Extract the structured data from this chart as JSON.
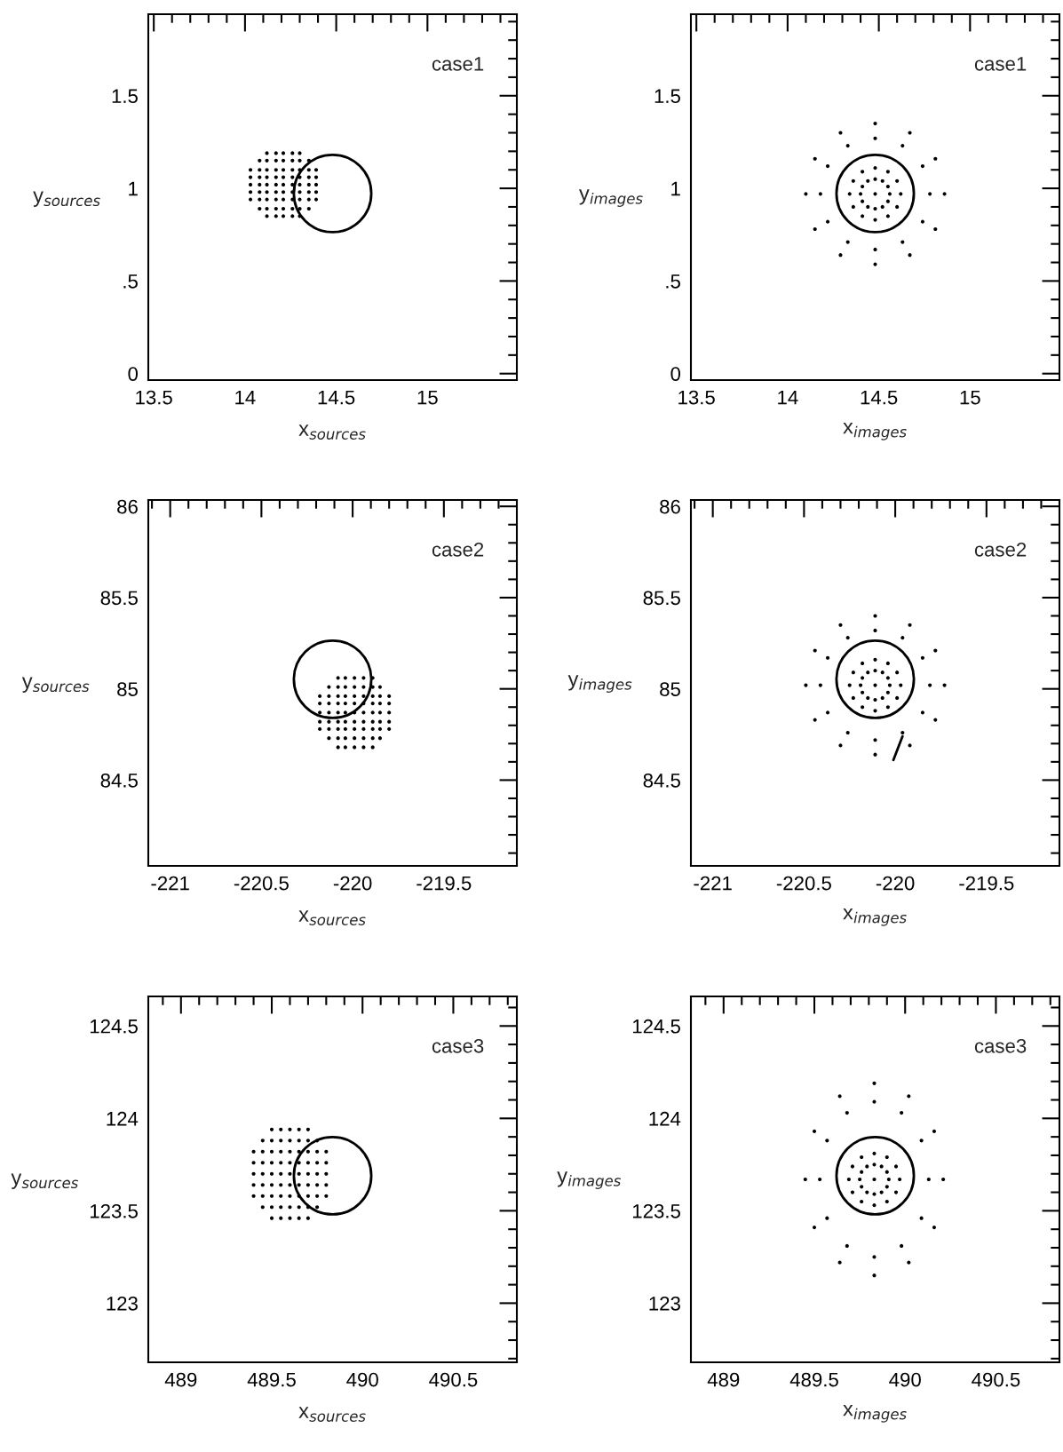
{
  "chart_data": [
    {
      "type": "scatter",
      "xlabel": "x$_{sources}$",
      "ylabel": "y$_{sources}$",
      "annotations": [
        "case1"
      ],
      "xlim": [
        13.47,
        15.49
      ],
      "ylim": [
        -0.035,
        1.94
      ],
      "xticks": [
        13.5,
        {
          "value": 13.6,
          "label": null
        },
        {
          "value": 13.7,
          "label": null
        },
        {
          "value": 13.8,
          "label": null
        },
        {
          "value": 13.9,
          "label": null
        },
        14,
        {
          "value": 14.1,
          "label": null
        },
        {
          "value": 14.2,
          "label": null
        },
        {
          "value": 14.3,
          "label": null
        },
        {
          "value": 14.4,
          "label": null
        },
        14.5,
        {
          "value": 14.6,
          "label": null
        },
        {
          "value": 14.7,
          "label": null
        },
        {
          "value": 14.8,
          "label": null
        },
        {
          "value": 14.9,
          "label": null
        },
        15,
        {
          "value": 15.1,
          "label": null
        },
        {
          "value": 15.2,
          "label": null
        },
        {
          "value": 15.3,
          "label": null
        },
        {
          "value": 15.4,
          "label": null
        }
      ],
      "yticks": [
        0,
        {
          "value": 0.1,
          "label": null
        },
        {
          "value": 0.2,
          "label": null
        },
        {
          "value": 0.3,
          "label": null
        },
        {
          "value": 0.4,
          "label": null
        },
        {
          "value": 0.5,
          "label": ".5"
        },
        {
          "value": 0.6,
          "label": null
        },
        {
          "value": 0.7,
          "label": null
        },
        {
          "value": 0.8,
          "label": null
        },
        {
          "value": 0.9,
          "label": null
        },
        1,
        {
          "value": 1.1,
          "label": null
        },
        {
          "value": 1.2,
          "label": null
        },
        {
          "value": 1.3,
          "label": null
        },
        {
          "value": 1.4,
          "label": null
        },
        1.5,
        {
          "value": 1.6,
          "label": null
        },
        {
          "value": 1.7,
          "label": null
        },
        {
          "value": 1.8,
          "label": null
        },
        {
          "value": 1.9,
          "label": null
        }
      ],
      "series": [
        {
          "type": "scatter",
          "marker": "circle",
          "color": "#000000",
          "x": [
            14.12,
            14.17,
            14.21,
            14.26,
            14.3,
            14.08,
            14.12,
            14.17,
            14.21,
            14.26,
            14.3,
            14.35,
            14.03,
            14.08,
            14.12,
            14.17,
            14.21,
            14.26,
            14.3,
            14.35,
            14.39,
            14.03,
            14.08,
            14.12,
            14.17,
            14.21,
            14.26,
            14.3,
            14.35,
            14.39,
            14.03,
            14.08,
            14.12,
            14.17,
            14.21,
            14.26,
            14.3,
            14.35,
            14.39,
            14.03,
            14.08,
            14.12,
            14.17,
            14.21,
            14.26,
            14.3,
            14.35,
            14.39,
            14.03,
            14.08,
            14.12,
            14.17,
            14.21,
            14.26,
            14.3,
            14.35,
            14.39,
            14.08,
            14.12,
            14.17,
            14.21,
            14.26,
            14.3,
            14.35,
            14.12,
            14.17,
            14.21,
            14.26,
            14.3
          ],
          "values": [
            0.85,
            0.85,
            0.85,
            0.85,
            0.85,
            0.89,
            0.89,
            0.89,
            0.89,
            0.89,
            0.89,
            0.89,
            0.94,
            0.94,
            0.94,
            0.94,
            0.94,
            0.94,
            0.94,
            0.94,
            0.94,
            0.98,
            0.98,
            0.98,
            0.98,
            0.98,
            0.98,
            0.98,
            0.98,
            0.98,
            1.02,
            1.02,
            1.02,
            1.02,
            1.02,
            1.02,
            1.02,
            1.02,
            1.02,
            1.06,
            1.06,
            1.06,
            1.06,
            1.06,
            1.06,
            1.06,
            1.06,
            1.06,
            1.1,
            1.1,
            1.1,
            1.1,
            1.1,
            1.1,
            1.1,
            1.1,
            1.1,
            1.15,
            1.15,
            1.15,
            1.15,
            1.15,
            1.15,
            1.15,
            1.19,
            1.19,
            1.19,
            1.19,
            1.19
          ]
        }
      ]
    },
    {
      "type": "scatter",
      "xlabel": "x$_{images}$",
      "ylabel": "y$_{images}$",
      "annotations": [
        "case1"
      ],
      "xlim": [
        13.47,
        15.49
      ],
      "ylim": [
        -0.035,
        1.94
      ],
      "xticks": [
        13.5,
        {
          "value": 13.6,
          "label": null
        },
        {
          "value": 13.7,
          "label": null
        },
        {
          "value": 13.8,
          "label": null
        },
        {
          "value": 13.9,
          "label": null
        },
        14,
        {
          "value": 14.1,
          "label": null
        },
        {
          "value": 14.2,
          "label": null
        },
        {
          "value": 14.3,
          "label": null
        },
        {
          "value": 14.4,
          "label": null
        },
        14.5,
        {
          "value": 14.6,
          "label": null
        },
        {
          "value": 14.7,
          "label": null
        },
        {
          "value": 14.8,
          "label": null
        },
        {
          "value": 14.9,
          "label": null
        },
        15,
        {
          "value": 15.1,
          "label": null
        },
        {
          "value": 15.2,
          "label": null
        },
        {
          "value": 15.3,
          "label": null
        },
        {
          "value": 15.4,
          "label": null
        }
      ],
      "yticks": [
        0,
        {
          "value": 0.1,
          "label": null
        },
        {
          "value": 0.2,
          "label": null
        },
        {
          "value": 0.3,
          "label": null
        },
        {
          "value": 0.4,
          "label": null
        },
        {
          "value": 0.5,
          "label": ".5"
        },
        {
          "value": 0.6,
          "label": null
        },
        {
          "value": 0.7,
          "label": null
        },
        {
          "value": 0.8,
          "label": null
        },
        {
          "value": 0.9,
          "label": null
        },
        1,
        {
          "value": 1.1,
          "label": null
        },
        {
          "value": 1.2,
          "label": null
        },
        {
          "value": 1.3,
          "label": null
        },
        {
          "value": 1.4,
          "label": null
        },
        1.5,
        {
          "value": 1.6,
          "label": null
        },
        {
          "value": 1.7,
          "label": null
        },
        {
          "value": 1.8,
          "label": null
        },
        {
          "value": 1.9,
          "label": null
        }
      ],
      "series": [
        {
          "type": "scatter",
          "marker": "circle",
          "color": "#000000",
          "x": [
            14.86,
            14.81,
            14.67,
            14.48,
            14.29,
            14.15,
            14.1,
            14.15,
            14.29,
            14.48,
            14.67,
            14.81,
            14.78,
            14.74,
            14.63,
            14.48,
            14.33,
            14.22,
            14.18,
            14.22,
            14.33,
            14.48,
            14.63,
            14.74,
            14.62,
            14.6,
            14.55,
            14.48,
            14.41,
            14.36,
            14.34,
            14.36,
            14.41,
            14.48,
            14.55,
            14.6,
            14.56,
            14.55,
            14.52,
            14.48,
            14.44,
            14.41,
            14.4,
            14.41,
            14.44,
            14.48,
            14.52,
            14.55,
            14.48
          ],
          "values": [
            0.97,
            1.16,
            1.3,
            1.35,
            1.3,
            1.16,
            0.97,
            0.78,
            0.64,
            0.59,
            0.64,
            0.78,
            0.97,
            1.12,
            1.23,
            1.27,
            1.23,
            1.12,
            0.97,
            0.82,
            0.71,
            0.67,
            0.71,
            0.82,
            0.97,
            1.04,
            1.09,
            1.11,
            1.09,
            1.04,
            0.97,
            0.9,
            0.85,
            0.83,
            0.85,
            0.9,
            0.97,
            1.01,
            1.04,
            1.05,
            1.04,
            1.01,
            0.97,
            0.93,
            0.9,
            0.89,
            0.9,
            0.93,
            0.97
          ]
        }
      ]
    },
    {
      "type": "scatter",
      "xlabel": "x$_{sources}$",
      "ylabel": "y$_{sources}$",
      "annotations": [
        "case2"
      ],
      "xlim": [
        -221.12,
        -219.1
      ],
      "ylim": [
        84.03,
        86.035
      ],
      "xticks": [
        {
          "value": -221.1,
          "label": null
        },
        -221,
        {
          "value": -220.9,
          "label": null
        },
        {
          "value": -220.8,
          "label": null
        },
        {
          "value": -220.7,
          "label": null
        },
        {
          "value": -220.6,
          "label": null
        },
        -220.5,
        {
          "value": -220.4,
          "label": null
        },
        {
          "value": -220.3,
          "label": null
        },
        {
          "value": -220.2,
          "label": null
        },
        {
          "value": -220.1,
          "label": null
        },
        -220,
        {
          "value": -219.9,
          "label": null
        },
        {
          "value": -219.8,
          "label": null
        },
        {
          "value": -219.7,
          "label": null
        },
        {
          "value": -219.6,
          "label": null
        },
        -219.5,
        {
          "value": -219.4,
          "label": null
        },
        {
          "value": -219.3,
          "label": null
        },
        {
          "value": -219.2,
          "label": null
        }
      ],
      "yticks": [
        {
          "value": 84.1,
          "label": null
        },
        {
          "value": 84.2,
          "label": null
        },
        {
          "value": 84.3,
          "label": null
        },
        {
          "value": 84.4,
          "label": null
        },
        84.5,
        {
          "value": 84.6,
          "label": null
        },
        {
          "value": 84.7,
          "label": null
        },
        {
          "value": 84.8,
          "label": null
        },
        {
          "value": 84.9,
          "label": null
        },
        85,
        {
          "value": 85.1,
          "label": null
        },
        {
          "value": 85.2,
          "label": null
        },
        {
          "value": 85.3,
          "label": null
        },
        {
          "value": 85.4,
          "label": null
        },
        85.5,
        {
          "value": 85.6,
          "label": null
        },
        {
          "value": 85.7,
          "label": null
        },
        {
          "value": 85.8,
          "label": null
        },
        {
          "value": 85.9,
          "label": null
        },
        86
      ],
      "series": [
        {
          "type": "scatter",
          "marker": "circle",
          "color": "#000000",
          "x": [
            -220.08,
            -220.04,
            -219.99,
            -219.94,
            -219.89,
            -220.13,
            -220.08,
            -220.04,
            -219.99,
            -219.94,
            -219.89,
            -219.85,
            -220.18,
            -220.13,
            -220.08,
            -220.04,
            -219.99,
            -219.94,
            -219.89,
            -219.85,
            -219.8,
            -220.18,
            -220.13,
            -220.08,
            -220.04,
            -219.99,
            -219.94,
            -219.89,
            -219.85,
            -219.8,
            -220.18,
            -220.13,
            -220.08,
            -220.04,
            -219.99,
            -219.94,
            -219.89,
            -219.85,
            -219.8,
            -220.18,
            -220.13,
            -220.08,
            -220.04,
            -219.99,
            -219.94,
            -219.89,
            -219.85,
            -219.8,
            -220.18,
            -220.13,
            -220.08,
            -220.04,
            -219.99,
            -219.94,
            -219.89,
            -219.85,
            -219.8,
            -220.13,
            -220.08,
            -220.04,
            -219.99,
            -219.94,
            -219.89,
            -219.85,
            -220.08,
            -220.04,
            -219.99,
            -219.94,
            -219.89
          ],
          "values": [
            84.68,
            84.68,
            84.68,
            84.68,
            84.68,
            84.73,
            84.73,
            84.73,
            84.73,
            84.73,
            84.73,
            84.73,
            84.78,
            84.78,
            84.78,
            84.78,
            84.78,
            84.78,
            84.78,
            84.78,
            84.78,
            84.82,
            84.82,
            84.82,
            84.82,
            84.82,
            84.82,
            84.82,
            84.82,
            84.82,
            84.87,
            84.87,
            84.87,
            84.87,
            84.87,
            84.87,
            84.87,
            84.87,
            84.87,
            84.92,
            84.92,
            84.92,
            84.92,
            84.92,
            84.92,
            84.92,
            84.92,
            84.92,
            84.96,
            84.96,
            84.96,
            84.96,
            84.96,
            84.96,
            84.96,
            84.96,
            84.96,
            85.01,
            85.01,
            85.01,
            85.01,
            85.01,
            85.01,
            85.01,
            85.06,
            85.06,
            85.06,
            85.06,
            85.06
          ]
        }
      ]
    },
    {
      "type": "scatter",
      "xlabel": "x$_{images}$",
      "ylabel": "y$_{images}$",
      "annotations": [
        "case2"
      ],
      "xlim": [
        -221.12,
        -219.1
      ],
      "ylim": [
        84.03,
        86.035
      ],
      "xticks": [
        {
          "value": -221.1,
          "label": null
        },
        -221,
        {
          "value": -220.9,
          "label": null
        },
        {
          "value": -220.8,
          "label": null
        },
        {
          "value": -220.7,
          "label": null
        },
        {
          "value": -220.6,
          "label": null
        },
        -220.5,
        {
          "value": -220.4,
          "label": null
        },
        {
          "value": -220.3,
          "label": null
        },
        {
          "value": -220.2,
          "label": null
        },
        {
          "value": -220.1,
          "label": null
        },
        -220,
        {
          "value": -219.9,
          "label": null
        },
        {
          "value": -219.8,
          "label": null
        },
        {
          "value": -219.7,
          "label": null
        },
        {
          "value": -219.6,
          "label": null
        },
        -219.5,
        {
          "value": -219.4,
          "label": null
        },
        {
          "value": -219.3,
          "label": null
        },
        {
          "value": -219.2,
          "label": null
        }
      ],
      "yticks": [
        {
          "value": 84.1,
          "label": null
        },
        {
          "value": 84.2,
          "label": null
        },
        {
          "value": 84.3,
          "label": null
        },
        {
          "value": 84.4,
          "label": null
        },
        84.5,
        {
          "value": 84.6,
          "label": null
        },
        {
          "value": 84.7,
          "label": null
        },
        {
          "value": 84.8,
          "label": null
        },
        {
          "value": 84.9,
          "label": null
        },
        85,
        {
          "value": 85.1,
          "label": null
        },
        {
          "value": 85.2,
          "label": null
        },
        {
          "value": 85.3,
          "label": null
        },
        {
          "value": 85.4,
          "label": null
        },
        85.5,
        {
          "value": 85.6,
          "label": null
        },
        {
          "value": 85.7,
          "label": null
        },
        {
          "value": 85.8,
          "label": null
        },
        {
          "value": 85.9,
          "label": null
        },
        86
      ],
      "series": [
        {
          "type": "scatter",
          "marker": "circle",
          "color": "#000000",
          "x": [
            -219.73,
            -219.78,
            -219.92,
            -220.11,
            -220.3,
            -220.44,
            -220.49,
            -220.44,
            -220.3,
            -220.11,
            -219.92,
            -219.78,
            -219.81,
            -219.85,
            -219.96,
            -220.11,
            -220.26,
            -220.37,
            -220.41,
            -220.37,
            -220.26,
            -220.11,
            -219.96,
            -219.85,
            -219.97,
            -219.99,
            -220.04,
            -220.11,
            -220.18,
            -220.23,
            -220.25,
            -220.23,
            -220.18,
            -220.11,
            -220.04,
            -219.99,
            -220.03,
            -220.04,
            -220.07,
            -220.11,
            -220.15,
            -220.18,
            -220.19,
            -220.18,
            -220.15,
            -220.11,
            -220.07,
            -220.04,
            -220.11
          ],
          "values": [
            85.02,
            85.21,
            85.35,
            85.4,
            85.35,
            85.21,
            85.02,
            84.83,
            84.69,
            84.64,
            84.69,
            84.83,
            85.02,
            85.17,
            85.28,
            85.32,
            85.28,
            85.17,
            85.02,
            84.87,
            84.76,
            84.72,
            84.76,
            84.87,
            85.02,
            85.09,
            85.14,
            85.16,
            85.14,
            85.09,
            85.02,
            84.95,
            84.9,
            84.88,
            84.9,
            84.95,
            85.02,
            85.06,
            85.09,
            85.1,
            85.09,
            85.06,
            85.02,
            84.98,
            84.95,
            84.94,
            84.95,
            84.98,
            85.02
          ]
        },
        {
          "type": "line",
          "marker": "none",
          "color": "#000000",
          "x": [
            -219.96,
            -220.01
          ],
          "values": [
            84.74,
            84.61
          ]
        }
      ]
    },
    {
      "type": "scatter",
      "xlabel": "x$_{sources}$",
      "ylabel": "y$_{sources}$",
      "annotations": [
        "case3"
      ],
      "xlim": [
        488.82,
        490.85
      ],
      "ylim": [
        122.68,
        124.66
      ],
      "xticks": [
        {
          "value": 488.9,
          "label": null
        },
        489,
        {
          "value": 489.1,
          "label": null
        },
        {
          "value": 489.2,
          "label": null
        },
        {
          "value": 489.3,
          "label": null
        },
        {
          "value": 489.4,
          "label": null
        },
        489.5,
        {
          "value": 489.6,
          "label": null
        },
        {
          "value": 489.7,
          "label": null
        },
        {
          "value": 489.8,
          "label": null
        },
        {
          "value": 489.9,
          "label": null
        },
        490,
        {
          "value": 490.1,
          "label": null
        },
        {
          "value": 490.2,
          "label": null
        },
        {
          "value": 490.3,
          "label": null
        },
        {
          "value": 490.4,
          "label": null
        },
        490.5,
        {
          "value": 490.6,
          "label": null
        },
        {
          "value": 490.7,
          "label": null
        },
        {
          "value": 490.8,
          "label": null
        }
      ],
      "yticks": [
        {
          "value": 122.7,
          "label": null
        },
        {
          "value": 122.8,
          "label": null
        },
        {
          "value": 122.9,
          "label": null
        },
        123,
        {
          "value": 123.1,
          "label": null
        },
        {
          "value": 123.2,
          "label": null
        },
        {
          "value": 123.3,
          "label": null
        },
        {
          "value": 123.4,
          "label": null
        },
        123.5,
        {
          "value": 123.6,
          "label": null
        },
        {
          "value": 123.7,
          "label": null
        },
        {
          "value": 123.8,
          "label": null
        },
        {
          "value": 123.9,
          "label": null
        },
        124,
        {
          "value": 124.1,
          "label": null
        },
        {
          "value": 124.2,
          "label": null
        },
        {
          "value": 124.3,
          "label": null
        },
        {
          "value": 124.4,
          "label": null
        },
        124.5,
        {
          "value": 124.6,
          "label": null
        }
      ],
      "series": [
        {
          "type": "scatter",
          "marker": "circle",
          "color": "#000000",
          "x": [
            489.5,
            489.55,
            489.6,
            489.65,
            489.7,
            489.45,
            489.5,
            489.55,
            489.6,
            489.65,
            489.7,
            489.75,
            489.4,
            489.45,
            489.5,
            489.55,
            489.6,
            489.65,
            489.7,
            489.75,
            489.8,
            489.4,
            489.45,
            489.5,
            489.55,
            489.6,
            489.65,
            489.7,
            489.75,
            489.8,
            489.4,
            489.45,
            489.5,
            489.55,
            489.6,
            489.65,
            489.7,
            489.75,
            489.8,
            489.4,
            489.45,
            489.5,
            489.55,
            489.6,
            489.65,
            489.7,
            489.75,
            489.8,
            489.4,
            489.45,
            489.5,
            489.55,
            489.6,
            489.65,
            489.7,
            489.75,
            489.8,
            489.45,
            489.5,
            489.55,
            489.6,
            489.65,
            489.7,
            489.75,
            489.5,
            489.55,
            489.6,
            489.65,
            489.7
          ],
          "values": [
            123.46,
            123.46,
            123.46,
            123.46,
            123.46,
            123.52,
            123.52,
            123.52,
            123.52,
            123.52,
            123.52,
            123.52,
            123.58,
            123.58,
            123.58,
            123.58,
            123.58,
            123.58,
            123.58,
            123.58,
            123.58,
            123.64,
            123.64,
            123.64,
            123.64,
            123.64,
            123.64,
            123.64,
            123.64,
            123.64,
            123.7,
            123.7,
            123.7,
            123.7,
            123.7,
            123.7,
            123.7,
            123.7,
            123.7,
            123.76,
            123.76,
            123.76,
            123.76,
            123.76,
            123.76,
            123.76,
            123.76,
            123.76,
            123.82,
            123.82,
            123.82,
            123.82,
            123.82,
            123.82,
            123.82,
            123.82,
            123.82,
            123.88,
            123.88,
            123.88,
            123.88,
            123.88,
            123.88,
            123.88,
            123.94,
            123.94,
            123.94,
            123.94,
            123.94
          ]
        }
      ]
    },
    {
      "type": "scatter",
      "xlabel": "x$_{images}$",
      "ylabel": "y$_{images}$",
      "annotations": [
        "case3"
      ],
      "xlim": [
        488.82,
        490.85
      ],
      "ylim": [
        122.68,
        124.66
      ],
      "xticks": [
        {
          "value": 488.9,
          "label": null
        },
        489,
        {
          "value": 489.1,
          "label": null
        },
        {
          "value": 489.2,
          "label": null
        },
        {
          "value": 489.3,
          "label": null
        },
        {
          "value": 489.4,
          "label": null
        },
        489.5,
        {
          "value": 489.6,
          "label": null
        },
        {
          "value": 489.7,
          "label": null
        },
        {
          "value": 489.8,
          "label": null
        },
        {
          "value": 489.9,
          "label": null
        },
        490,
        {
          "value": 490.1,
          "label": null
        },
        {
          "value": 490.2,
          "label": null
        },
        {
          "value": 490.3,
          "label": null
        },
        {
          "value": 490.4,
          "label": null
        },
        490.5,
        {
          "value": 490.6,
          "label": null
        },
        {
          "value": 490.7,
          "label": null
        },
        {
          "value": 490.8,
          "label": null
        }
      ],
      "yticks": [
        {
          "value": 122.7,
          "label": null
        },
        {
          "value": 122.8,
          "label": null
        },
        {
          "value": 122.9,
          "label": null
        },
        123,
        {
          "value": 123.1,
          "label": null
        },
        {
          "value": 123.2,
          "label": null
        },
        {
          "value": 123.3,
          "label": null
        },
        {
          "value": 123.4,
          "label": null
        },
        123.5,
        {
          "value": 123.6,
          "label": null
        },
        {
          "value": 123.7,
          "label": null
        },
        {
          "value": 123.8,
          "label": null
        },
        {
          "value": 123.9,
          "label": null
        },
        124,
        {
          "value": 124.1,
          "label": null
        },
        {
          "value": 124.2,
          "label": null
        },
        {
          "value": 124.3,
          "label": null
        },
        {
          "value": 124.4,
          "label": null
        },
        124.5,
        {
          "value": 124.6,
          "label": null
        }
      ],
      "series": [
        {
          "type": "scatter",
          "marker": "circle",
          "color": "#000000",
          "x": [
            490.21,
            490.16,
            490.02,
            489.83,
            489.64,
            489.5,
            489.45,
            489.5,
            489.64,
            489.83,
            490.02,
            490.16,
            490.13,
            490.09,
            489.98,
            489.83,
            489.68,
            489.57,
            489.53,
            489.57,
            489.68,
            489.83,
            489.98,
            490.09,
            489.97,
            489.95,
            489.9,
            489.83,
            489.76,
            489.71,
            489.69,
            489.71,
            489.76,
            489.83,
            489.9,
            489.95,
            489.91,
            489.9,
            489.87,
            489.83,
            489.79,
            489.76,
            489.75,
            489.76,
            489.79,
            489.83,
            489.87,
            489.9,
            489.83
          ],
          "values": [
            123.67,
            123.93,
            124.12,
            124.19,
            124.12,
            123.93,
            123.67,
            123.41,
            123.22,
            123.15,
            123.22,
            123.41,
            123.67,
            123.88,
            124.03,
            124.09,
            124.03,
            123.88,
            123.67,
            123.46,
            123.31,
            123.25,
            123.31,
            123.46,
            123.67,
            123.74,
            123.79,
            123.81,
            123.79,
            123.74,
            123.67,
            123.6,
            123.55,
            123.53,
            123.55,
            123.6,
            123.67,
            123.71,
            123.74,
            123.75,
            123.74,
            123.71,
            123.67,
            123.63,
            123.6,
            123.59,
            123.6,
            123.63,
            123.67
          ]
        }
      ]
    }
  ]
}
